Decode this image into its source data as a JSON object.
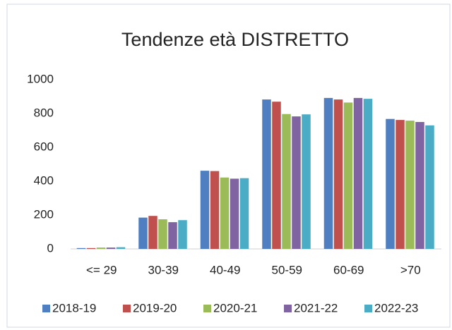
{
  "chart_data": {
    "type": "bar",
    "title": "Tendenze età DISTRETTO",
    "categories": [
      "<= 29",
      "30-39",
      "40-49",
      "50-59",
      "60-69",
      ">70"
    ],
    "series": [
      {
        "name": "2018-19",
        "color": "#4f7fc0",
        "values": [
          5,
          185,
          462,
          883,
          892,
          768
        ]
      },
      {
        "name": "2019-20",
        "color": "#c0504d",
        "values": [
          5,
          195,
          460,
          870,
          883,
          762
        ]
      },
      {
        "name": "2020-21",
        "color": "#9bbb59",
        "values": [
          8,
          175,
          422,
          797,
          865,
          758
        ]
      },
      {
        "name": "2021-22",
        "color": "#8064a2",
        "values": [
          8,
          158,
          415,
          783,
          892,
          750
        ]
      },
      {
        "name": "2022-23",
        "color": "#4bacc6",
        "values": [
          10,
          170,
          418,
          795,
          887,
          730
        ]
      }
    ],
    "ylim": [
      0,
      1000
    ],
    "yticks": [
      0,
      200,
      400,
      600,
      800,
      1000
    ],
    "grid": false,
    "legend": "bottom"
  }
}
